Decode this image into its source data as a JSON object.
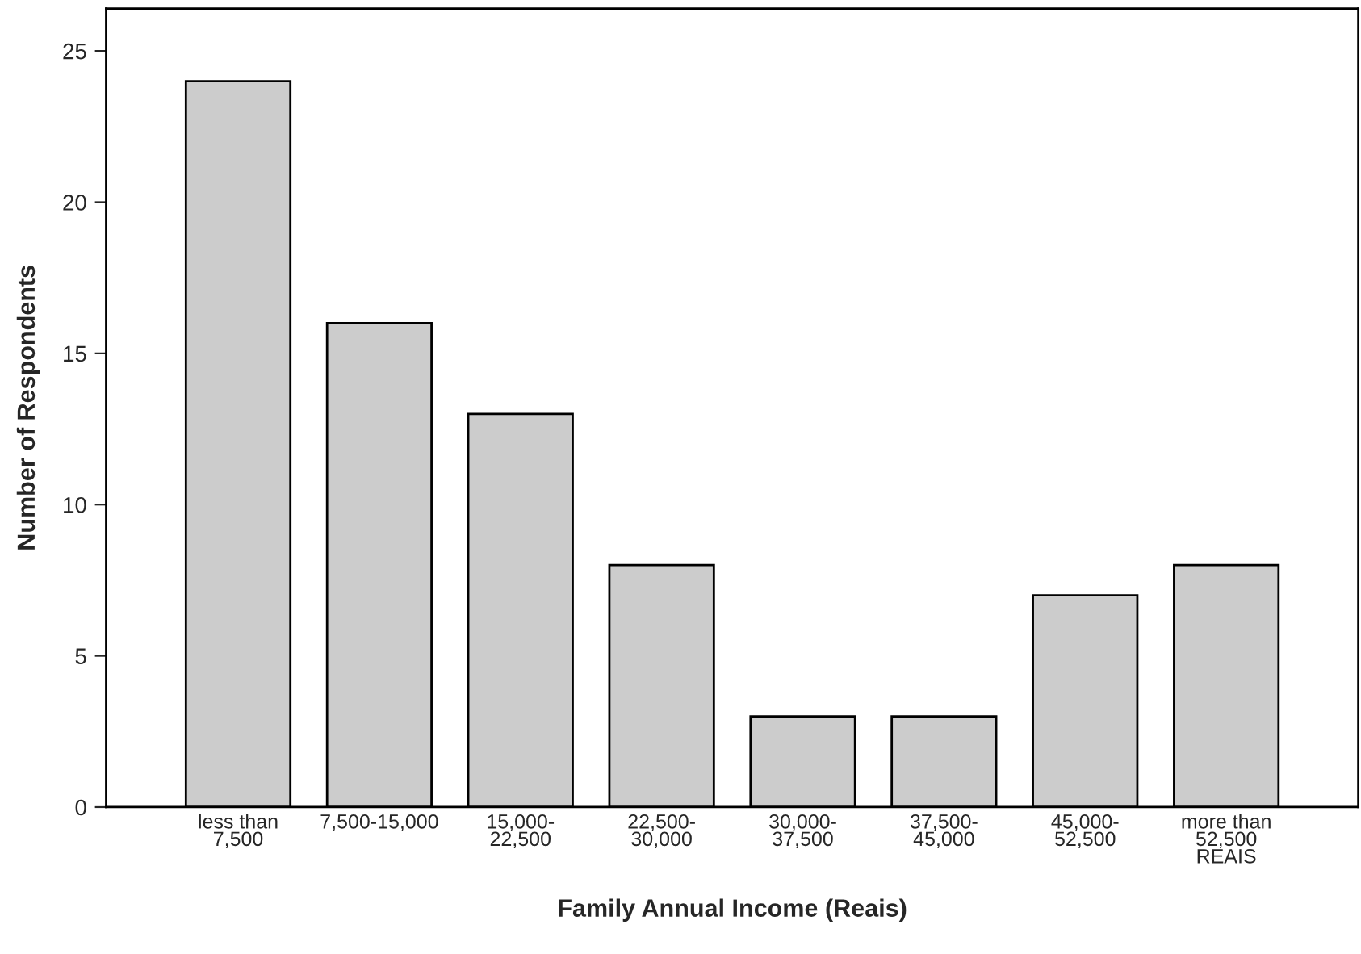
{
  "chart_data": {
    "type": "bar",
    "xlabel": "Family Annual Income (Reais)",
    "ylabel": "Number of Respondents",
    "categories": [
      "less than\n7,500",
      "7,500-15,000",
      "15,000-\n22,500",
      "22,500-\n30,000",
      "30,000-\n37,500",
      "37,500-\n45,000",
      "45,000-\n52,500",
      "more than\n52,500\nREAIS"
    ],
    "values": [
      24,
      16,
      13,
      8,
      3,
      3,
      7,
      8
    ],
    "color": "#cccccc",
    "ylim": [
      0,
      26.4
    ],
    "yticks": [
      0,
      5,
      10,
      15,
      20,
      25
    ],
    "grid": false
  }
}
